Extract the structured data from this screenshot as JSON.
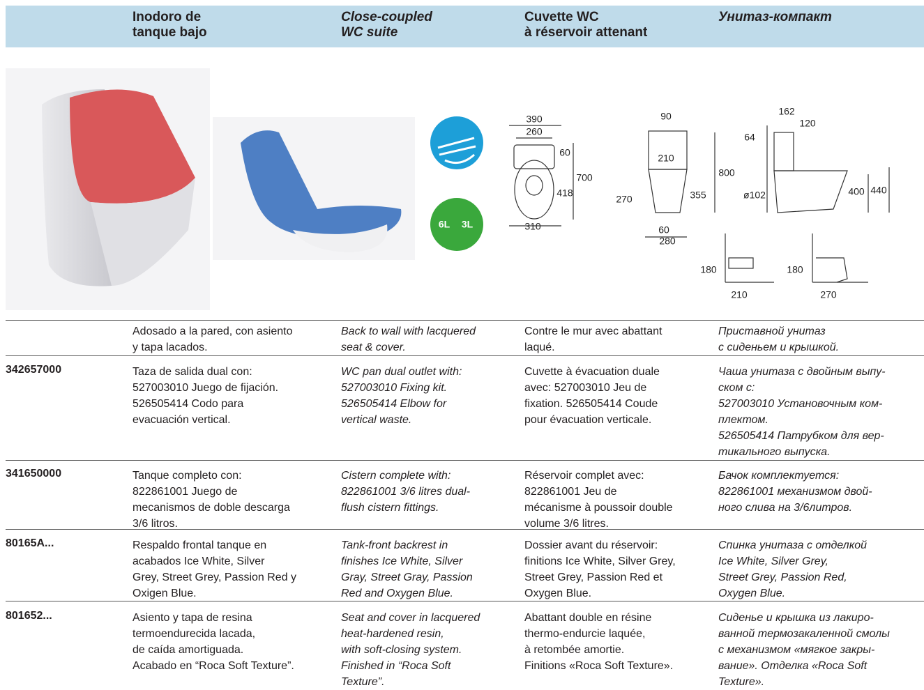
{
  "header": {
    "columns": [
      [
        "Inodoro de",
        "tanque bajo"
      ],
      [
        "Close-coupled",
        "WC suite"
      ],
      [
        "Cuvette WC",
        "à réservoir attenant"
      ],
      [
        "Унитаз-компакт"
      ]
    ]
  },
  "icons": {
    "flush": [
      "6L",
      "3L"
    ]
  },
  "drawings": {
    "front": [
      "390",
      "260",
      "60",
      "700",
      "418",
      "310"
    ],
    "side": [
      "90",
      "210",
      "800",
      "270",
      "355",
      "60",
      "280"
    ],
    "profile": [
      "162",
      "120",
      "64",
      "ø102",
      "400",
      "440"
    ],
    "install_1": [
      "180",
      "210"
    ],
    "install_2": [
      "180",
      "270"
    ]
  },
  "table": {
    "rows": [
      {
        "cells": [
          [
            "Adosado a la pared, con asiento",
            "y tapa lacados."
          ],
          [
            "Back to wall with lacquered",
            "seat & cover."
          ],
          [
            "Contre le mur avec abattant",
            "laqué."
          ],
          [
            "Приставной унитаз",
            "с сиденьем и крышкой."
          ]
        ]
      },
      {
        "code": "342657000",
        "cells": [
          [
            "Taza de salida dual con:",
            "527003010 Juego de fijación.",
            "526505414 Codo para",
            "evacuación vertical."
          ],
          [
            "WC pan dual outlet with:",
            "527003010 Fixing kit.",
            "526505414 Elbow for",
            "vertical waste."
          ],
          [
            "Cuvette à évacuation duale",
            "avec:  527003010 Jeu de",
            "fixation. 526505414 Coude",
            "pour évacuation verticale."
          ],
          [
            "Чаша унитаза с двойным выпу-",
            "ском с:",
            "527003010 Установочным ком-",
            "плектом.",
            "526505414 Патрубком для вер-",
            "тикального выпуска."
          ]
        ]
      },
      {
        "code": "341650000",
        "cells": [
          [
            "Tanque completo con:",
            "822861001 Juego de",
            "mecanismos de doble descarga",
            "3/6 litros."
          ],
          [
            "Cistern complete with:",
            "822861001 3/6 litres dual-",
            "flush cistern fittings."
          ],
          [
            "Réservoir complet avec:",
            "822861001 Jeu de",
            "mécanisme à poussoir double",
            "volume 3/6 litres."
          ],
          [
            "Бачок комплектуется:",
            "822861001 механизмом двой-",
            "ного слива на 3/6литров."
          ]
        ]
      },
      {
        "code": "80165A...",
        "cells": [
          [
            "Respaldo frontal tanque en",
            "acabados Ice White, Silver",
            "Grey, Street Grey, Passion Red y",
            "Oxigen Blue."
          ],
          [
            "Tank-front backrest in",
            "finishes Ice White, Silver",
            "Gray, Street Gray, Passion",
            "Red and Oxygen Blue."
          ],
          [
            "Dossier avant du réservoir:",
            "finitions Ice White, Silver Grey,",
            "Street Grey, Passion Red et",
            "Oxygen Blue."
          ],
          [
            "Спинка унитаза с отделкой",
            "Ice White, Silver Grey,",
            "Street Grey, Passion Red,",
            "Oxygen Blue."
          ]
        ]
      },
      {
        "code": "801652...",
        "cells": [
          [
            "Asiento y tapa de resina",
            "termoendurecida lacada,",
            "de caída amortiguada.",
            "Acabado en “Roca Soft Texture”."
          ],
          [
            "Seat and cover in lacquered",
            "heat-hardened resin,",
            "with soft-closing system.",
            "Finished in “Roca Soft",
            "Texture”."
          ],
          [
            "Abattant double en résine",
            "thermo-endurcie laquée,",
            "à retombée amortie.",
            "Finitions «Roca Soft Texture»."
          ],
          [
            "Сиденье и крышка из лакиро-",
            "ванной термозакаленной смолы",
            "с механизмом «мягкое закры-",
            "вание». Отделка «Roca Soft",
            "Texture»."
          ]
        ]
      }
    ]
  }
}
